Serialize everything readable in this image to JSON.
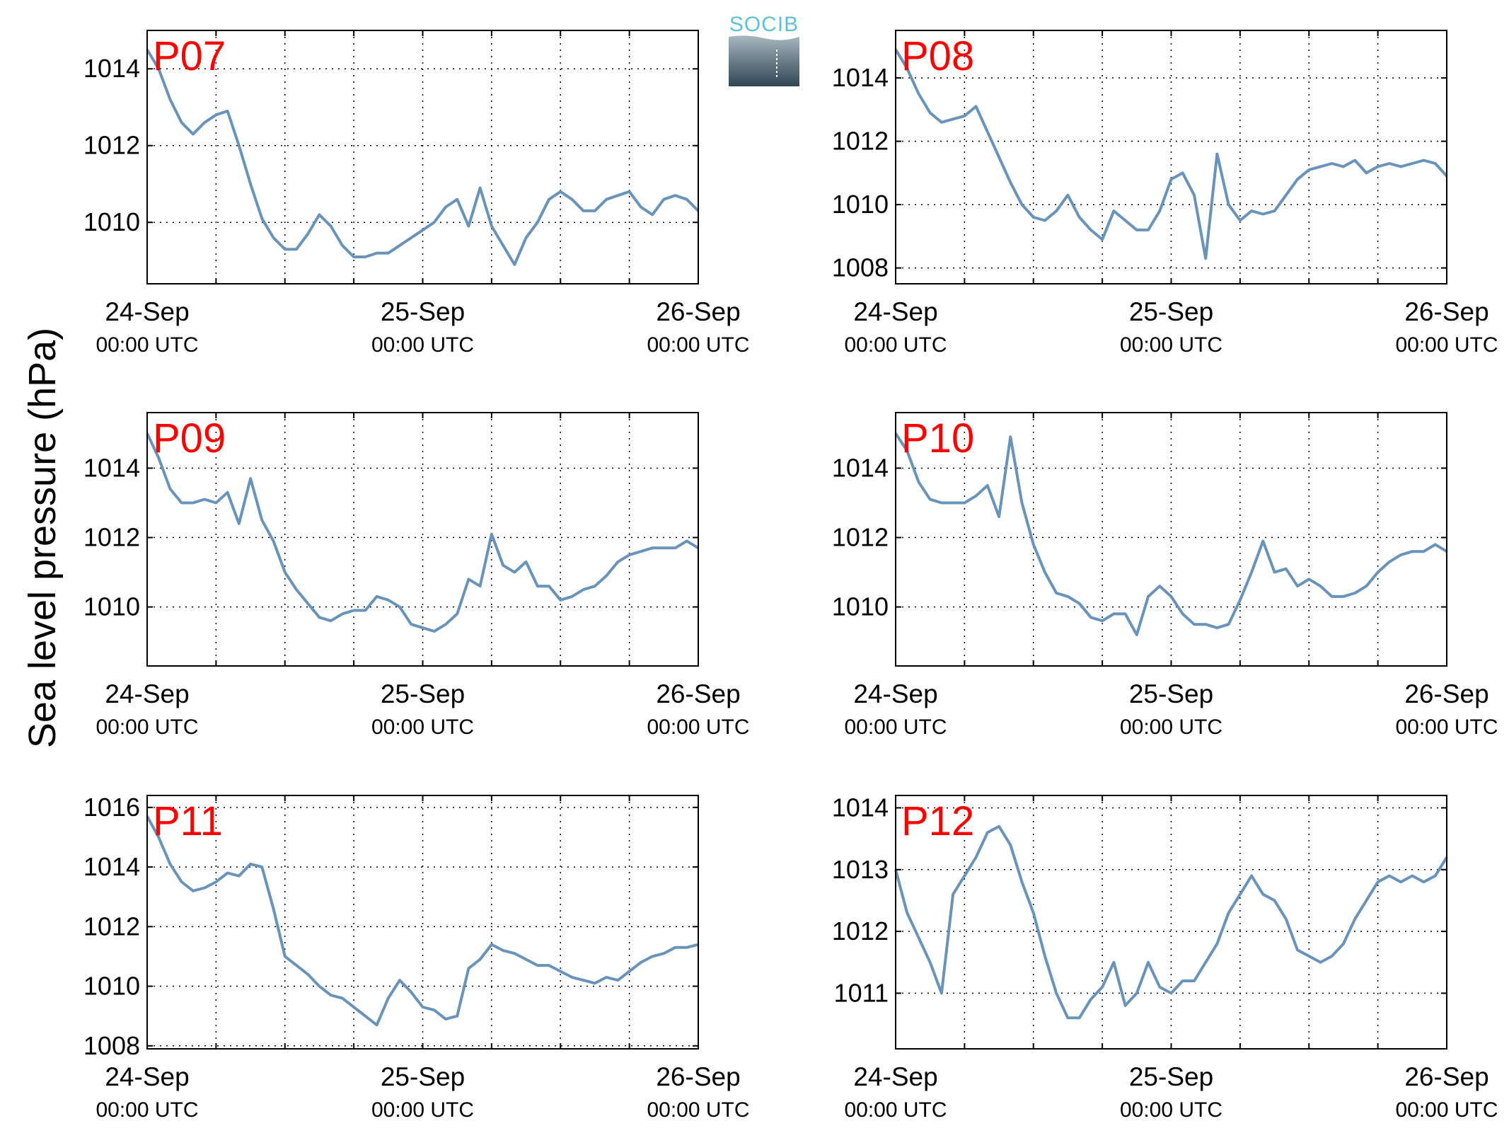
{
  "figure": {
    "ylabel": "Sea level pressure (hPa)",
    "logo_text": "SOCIB",
    "line_color": "#6a93b9",
    "label_color": "#ff0000"
  },
  "chart_data": [
    {
      "type": "line",
      "station": "P07",
      "xlabel_ticks": [
        [
          "24-Sep",
          "00:00 UTC"
        ],
        [
          "25-Sep",
          "00:00 UTC"
        ],
        [
          "26-Sep",
          "00:00 UTC"
        ]
      ],
      "x_range_hours": [
        0,
        48
      ],
      "ylim": [
        1008.4,
        1015
      ],
      "yticks": [
        1010,
        1012,
        1014
      ],
      "x": [
        0,
        1,
        2,
        3,
        4,
        5,
        6,
        7,
        8,
        9,
        10,
        11,
        12,
        13,
        14,
        15,
        16,
        17,
        18,
        19,
        20,
        21,
        22,
        23,
        24,
        25,
        26,
        27,
        28,
        29,
        30,
        31,
        32,
        33,
        34,
        35,
        36,
        37,
        38,
        39,
        40,
        41,
        42,
        43,
        44,
        45,
        46,
        47,
        48
      ],
      "values": [
        1014.5,
        1014.0,
        1013.2,
        1012.6,
        1012.3,
        1012.6,
        1012.8,
        1012.9,
        1012.0,
        1011.0,
        1010.1,
        1009.6,
        1009.3,
        1009.3,
        1009.7,
        1010.2,
        1009.9,
        1009.4,
        1009.1,
        1009.1,
        1009.2,
        1009.2,
        1009.4,
        1009.6,
        1009.8,
        1010.0,
        1010.4,
        1010.6,
        1009.9,
        1010.9,
        1009.9,
        1009.4,
        1008.9,
        1009.6,
        1010.0,
        1010.6,
        1010.8,
        1010.6,
        1010.3,
        1010.3,
        1010.6,
        1010.7,
        1010.8,
        1010.4,
        1010.2,
        1010.6,
        1010.7,
        1010.6,
        1010.3
      ]
    },
    {
      "type": "line",
      "station": "P08",
      "xlabel_ticks": [
        [
          "24-Sep",
          "00:00 UTC"
        ],
        [
          "25-Sep",
          "00:00 UTC"
        ],
        [
          "26-Sep",
          "00:00 UTC"
        ]
      ],
      "x_range_hours": [
        0,
        48
      ],
      "ylim": [
        1007.5,
        1015.5
      ],
      "yticks": [
        1008,
        1010,
        1012,
        1014
      ],
      "x": [
        0,
        1,
        2,
        3,
        4,
        5,
        6,
        7,
        8,
        9,
        10,
        11,
        12,
        13,
        14,
        15,
        16,
        17,
        18,
        19,
        20,
        21,
        22,
        23,
        24,
        25,
        26,
        27,
        28,
        29,
        30,
        31,
        32,
        33,
        34,
        35,
        36,
        37,
        38,
        39,
        40,
        41,
        42,
        43,
        44,
        45,
        46,
        47,
        48
      ],
      "values": [
        1014.9,
        1014.3,
        1013.5,
        1012.9,
        1012.6,
        1012.7,
        1012.8,
        1013.1,
        1012.3,
        1011.5,
        1010.7,
        1010.0,
        1009.6,
        1009.5,
        1009.8,
        1010.3,
        1009.6,
        1009.2,
        1008.9,
        1009.8,
        1009.5,
        1009.2,
        1009.2,
        1009.8,
        1010.8,
        1011.0,
        1010.3,
        1008.3,
        1011.6,
        1010.0,
        1009.5,
        1009.8,
        1009.7,
        1009.8,
        1010.3,
        1010.8,
        1011.1,
        1011.2,
        1011.3,
        1011.2,
        1011.4,
        1011.0,
        1011.2,
        1011.3,
        1011.2,
        1011.3,
        1011.4,
        1011.3,
        1010.9
      ]
    },
    {
      "type": "line",
      "station": "P09",
      "xlabel_ticks": [
        [
          "24-Sep",
          "00:00 UTC"
        ],
        [
          "25-Sep",
          "00:00 UTC"
        ],
        [
          "26-Sep",
          "00:00 UTC"
        ]
      ],
      "x_range_hours": [
        0,
        48
      ],
      "ylim": [
        1008.3,
        1015.6
      ],
      "yticks": [
        1010,
        1012,
        1014
      ],
      "x": [
        0,
        1,
        2,
        3,
        4,
        5,
        6,
        7,
        8,
        9,
        10,
        11,
        12,
        13,
        14,
        15,
        16,
        17,
        18,
        19,
        20,
        21,
        22,
        23,
        24,
        25,
        26,
        27,
        28,
        29,
        30,
        31,
        32,
        33,
        34,
        35,
        36,
        37,
        38,
        39,
        40,
        41,
        42,
        43,
        44,
        45,
        46,
        47,
        48
      ],
      "values": [
        1015.0,
        1014.3,
        1013.4,
        1013.0,
        1013.0,
        1013.1,
        1013.0,
        1013.3,
        1012.4,
        1013.7,
        1012.5,
        1011.9,
        1011.0,
        1010.5,
        1010.1,
        1009.7,
        1009.6,
        1009.8,
        1009.9,
        1009.9,
        1010.3,
        1010.2,
        1010.0,
        1009.5,
        1009.4,
        1009.3,
        1009.5,
        1009.8,
        1010.8,
        1010.6,
        1012.1,
        1011.2,
        1011.0,
        1011.3,
        1010.6,
        1010.6,
        1010.2,
        1010.3,
        1010.5,
        1010.6,
        1010.9,
        1011.3,
        1011.5,
        1011.6,
        1011.7,
        1011.7,
        1011.7,
        1011.9,
        1011.7
      ]
    },
    {
      "type": "line",
      "station": "P10",
      "xlabel_ticks": [
        [
          "24-Sep",
          "00:00 UTC"
        ],
        [
          "25-Sep",
          "00:00 UTC"
        ],
        [
          "26-Sep",
          "00:00 UTC"
        ]
      ],
      "x_range_hours": [
        0,
        48
      ],
      "ylim": [
        1008.3,
        1015.6
      ],
      "yticks": [
        1010,
        1012,
        1014
      ],
      "x": [
        0,
        1,
        2,
        3,
        4,
        5,
        6,
        7,
        8,
        9,
        10,
        11,
        12,
        13,
        14,
        15,
        16,
        17,
        18,
        19,
        20,
        21,
        22,
        23,
        24,
        25,
        26,
        27,
        28,
        29,
        30,
        31,
        32,
        33,
        34,
        35,
        36,
        37,
        38,
        39,
        40,
        41,
        42,
        43,
        44,
        45,
        46,
        47,
        48
      ],
      "values": [
        1015.0,
        1014.5,
        1013.6,
        1013.1,
        1013.0,
        1013.0,
        1013.0,
        1013.2,
        1013.5,
        1012.6,
        1014.9,
        1013.0,
        1011.8,
        1011.0,
        1010.4,
        1010.3,
        1010.1,
        1009.7,
        1009.6,
        1009.8,
        1009.8,
        1009.2,
        1010.3,
        1010.6,
        1010.3,
        1009.8,
        1009.5,
        1009.5,
        1009.4,
        1009.5,
        1010.2,
        1011.0,
        1011.9,
        1011.0,
        1011.1,
        1010.6,
        1010.8,
        1010.6,
        1010.3,
        1010.3,
        1010.4,
        1010.6,
        1011.0,
        1011.3,
        1011.5,
        1011.6,
        1011.6,
        1011.8,
        1011.6
      ]
    },
    {
      "type": "line",
      "station": "P11",
      "xlabel_ticks": [
        [
          "24-Sep",
          "00:00 UTC"
        ],
        [
          "25-Sep",
          "00:00 UTC"
        ],
        [
          "26-Sep",
          "00:00 UTC"
        ]
      ],
      "x_range_hours": [
        0,
        48
      ],
      "ylim": [
        1007.9,
        1016.4
      ],
      "yticks": [
        1008,
        1010,
        1012,
        1014,
        1016
      ],
      "x": [
        0,
        1,
        2,
        3,
        4,
        5,
        6,
        7,
        8,
        9,
        10,
        11,
        12,
        13,
        14,
        15,
        16,
        17,
        18,
        19,
        20,
        21,
        22,
        23,
        24,
        25,
        26,
        27,
        28,
        29,
        30,
        31,
        32,
        33,
        34,
        35,
        36,
        37,
        38,
        39,
        40,
        41,
        42,
        43,
        44,
        45,
        46,
        47,
        48
      ],
      "values": [
        1015.7,
        1015.0,
        1014.1,
        1013.5,
        1013.2,
        1013.3,
        1013.5,
        1013.8,
        1013.7,
        1014.1,
        1014.0,
        1012.6,
        1011.0,
        1010.7,
        1010.4,
        1010.0,
        1009.7,
        1009.6,
        1009.3,
        1009.0,
        1008.7,
        1009.6,
        1010.2,
        1009.8,
        1009.3,
        1009.2,
        1008.9,
        1009.0,
        1010.6,
        1010.9,
        1011.4,
        1011.2,
        1011.1,
        1010.9,
        1010.7,
        1010.7,
        1010.5,
        1010.3,
        1010.2,
        1010.1,
        1010.3,
        1010.2,
        1010.5,
        1010.8,
        1011.0,
        1011.1,
        1011.3,
        1011.3,
        1011.4
      ]
    },
    {
      "type": "line",
      "station": "P12",
      "xlabel_ticks": [
        [
          "24-Sep",
          "00:00 UTC"
        ],
        [
          "25-Sep",
          "00:00 UTC"
        ],
        [
          "26-Sep",
          "00:00 UTC"
        ]
      ],
      "x_range_hours": [
        0,
        48
      ],
      "ylim": [
        1010.1,
        1014.2
      ],
      "yticks": [
        1011,
        1012,
        1013,
        1014
      ],
      "x": [
        0,
        1,
        2,
        3,
        4,
        5,
        6,
        7,
        8,
        9,
        10,
        11,
        12,
        13,
        14,
        15,
        16,
        17,
        18,
        19,
        20,
        21,
        22,
        23,
        24,
        25,
        26,
        27,
        28,
        29,
        30,
        31,
        32,
        33,
        34,
        35,
        36,
        37,
        38,
        39,
        40,
        41,
        42,
        43,
        44,
        45,
        46,
        47,
        48
      ],
      "values": [
        1013.0,
        1012.3,
        1011.9,
        1011.5,
        1011.0,
        1012.6,
        1012.9,
        1013.2,
        1013.6,
        1013.7,
        1013.4,
        1012.8,
        1012.3,
        1011.6,
        1011.0,
        1010.6,
        1010.6,
        1010.9,
        1011.1,
        1011.5,
        1010.8,
        1011.0,
        1011.5,
        1011.1,
        1011.0,
        1011.2,
        1011.2,
        1011.5,
        1011.8,
        1012.3,
        1012.6,
        1012.9,
        1012.6,
        1012.5,
        1012.2,
        1011.7,
        1011.6,
        1011.5,
        1011.6,
        1011.8,
        1012.2,
        1012.5,
        1012.8,
        1012.9,
        1012.8,
        1012.9,
        1012.8,
        1012.9,
        1013.2
      ]
    }
  ]
}
